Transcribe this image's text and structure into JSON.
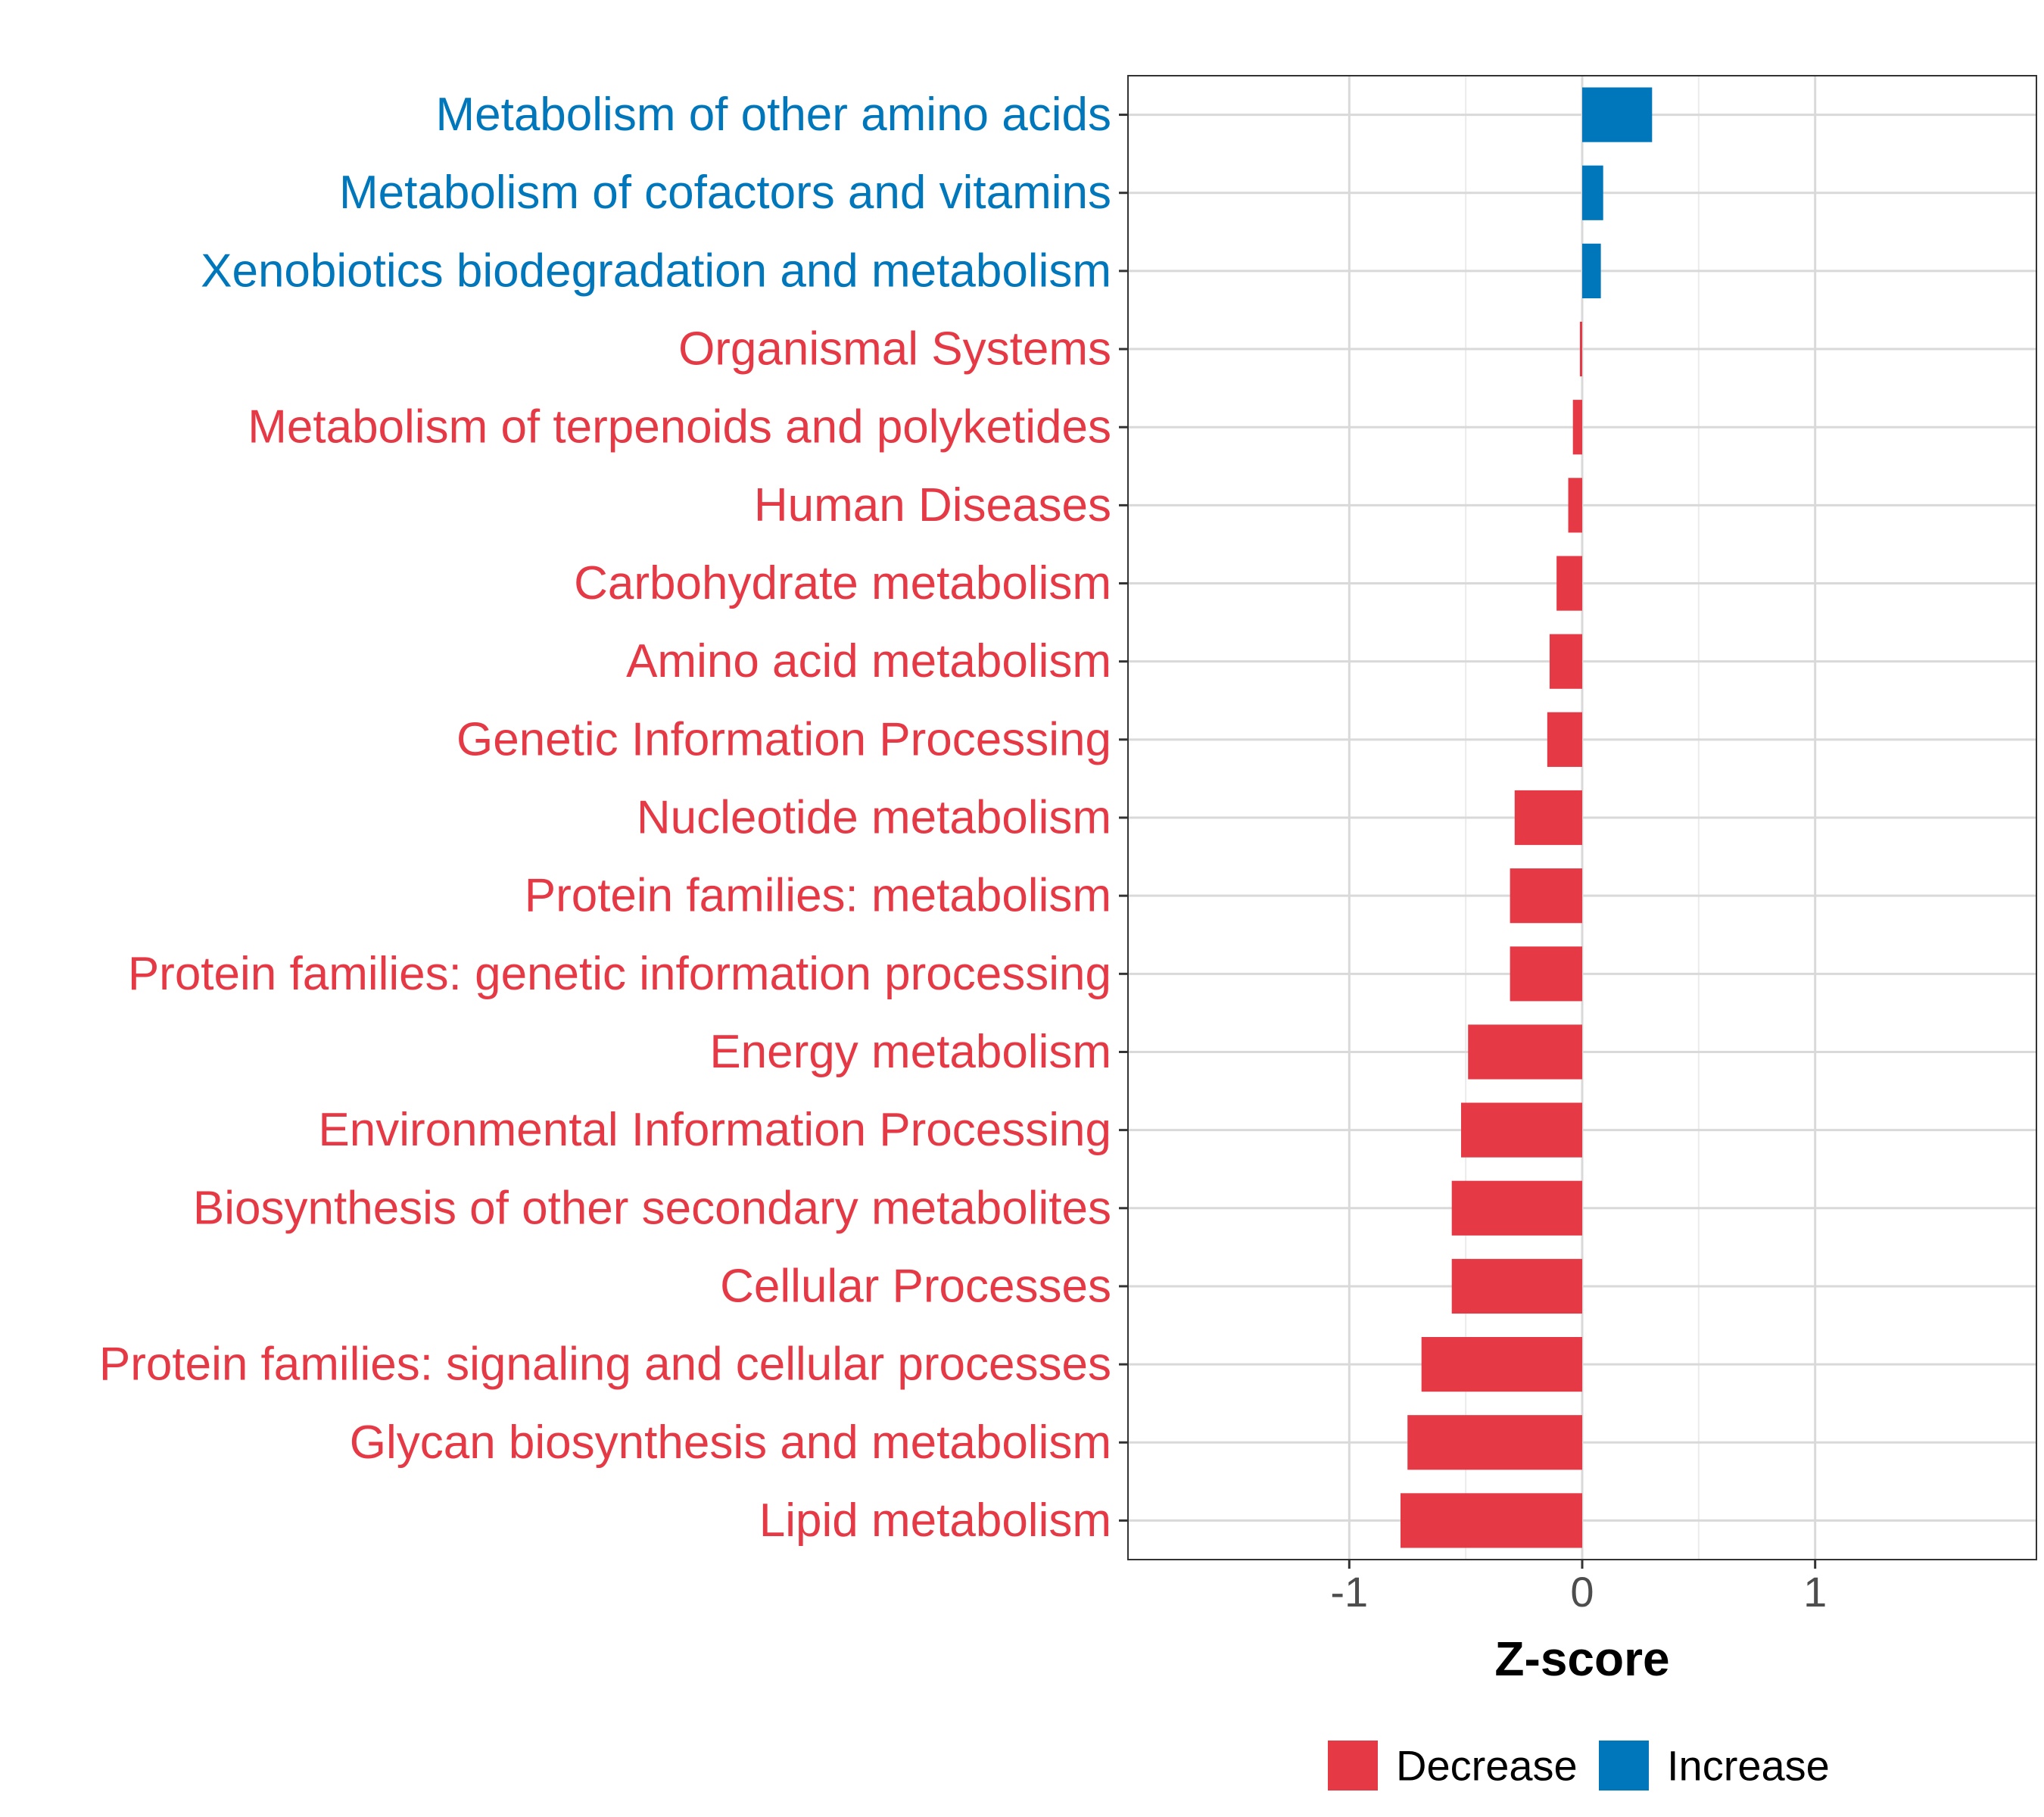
{
  "chart_data": {
    "type": "bar",
    "orientation": "horizontal",
    "title": "",
    "xlabel": "Z-score",
    "ylabel": "",
    "xlim": [
      -1.95,
      1.95
    ],
    "xticks": [
      -1,
      0,
      1
    ],
    "xtick_labels": [
      "-1",
      "0",
      "1"
    ],
    "grid": true,
    "legend_position": "bottom",
    "colors": {
      "Decrease": "#E63946",
      "Increase": "#0077BB"
    },
    "legend": [
      {
        "label": "Decrease",
        "color": "#E63946"
      },
      {
        "label": "Increase",
        "color": "#0077BB"
      }
    ],
    "categories": [
      "Metabolism of other amino acids",
      "Metabolism of cofactors and vitamins",
      "Xenobiotics biodegradation and metabolism",
      "Organismal Systems",
      "Metabolism of terpenoids and polyketides",
      "Human Diseases",
      "Carbohydrate metabolism",
      "Amino acid metabolism",
      "Genetic Information Processing",
      "Nucleotide metabolism",
      "Protein families: metabolism",
      "Protein families: genetic information processing",
      "Energy metabolism",
      "Environmental Information Processing",
      "Biosynthesis of other secondary metabolites",
      "Cellular Processes",
      "Protein families: signaling and cellular processes",
      "Glycan biosynthesis and metabolism",
      "Lipid metabolism"
    ],
    "values": [
      0.3,
      0.09,
      0.08,
      -0.01,
      -0.04,
      -0.06,
      -0.11,
      -0.14,
      -0.15,
      -0.29,
      -0.31,
      -0.31,
      -0.49,
      -0.52,
      -0.56,
      -0.56,
      -0.69,
      -0.75,
      -0.78
    ],
    "groups": [
      "Increase",
      "Increase",
      "Increase",
      "Decrease",
      "Decrease",
      "Decrease",
      "Decrease",
      "Decrease",
      "Decrease",
      "Decrease",
      "Decrease",
      "Decrease",
      "Decrease",
      "Decrease",
      "Decrease",
      "Decrease",
      "Decrease",
      "Decrease",
      "Decrease"
    ]
  }
}
